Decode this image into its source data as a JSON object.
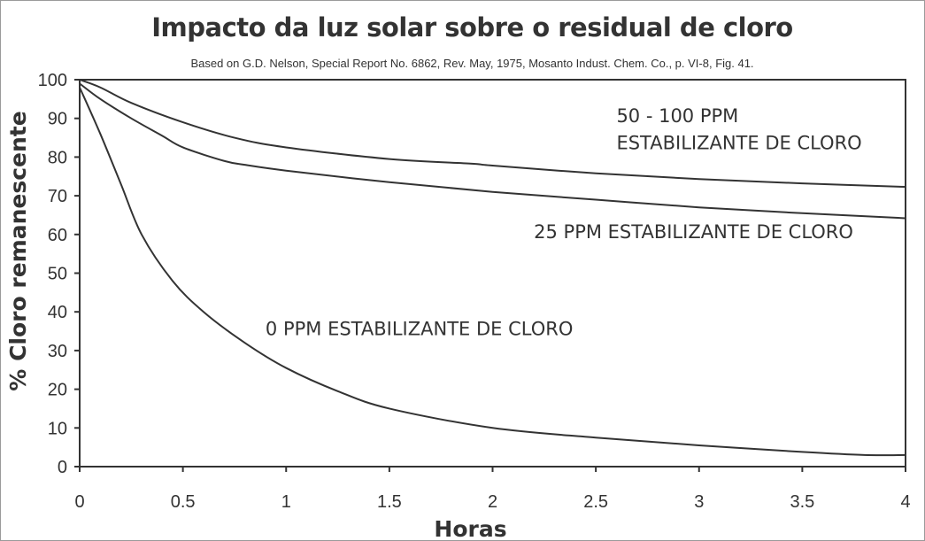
{
  "chart_data": {
    "type": "line",
    "title": "Impacto da luz solar sobre o residual de cloro",
    "subtitle": "Based on G.D. Nelson, Special Report No. 6862, Rev. May, 1975, Mosanto Indust. Chem. Co., p. VI-8, Fig. 41.",
    "xlabel": "Horas",
    "ylabel": "% Cloro remanescente",
    "xlim": [
      0,
      4
    ],
    "ylim": [
      0,
      100
    ],
    "x_ticks": [
      "0",
      "0.5",
      "1",
      "1.5",
      "2",
      "2.5",
      "3",
      "3.5",
      "4"
    ],
    "y_ticks": [
      "0",
      "10",
      "20",
      "30",
      "40",
      "50",
      "60",
      "70",
      "80",
      "90",
      "100"
    ],
    "grid": false,
    "series": [
      {
        "x": [
          0,
          0.1,
          0.25,
          0.5,
          0.75,
          1,
          1.5,
          1.9,
          2,
          2.5,
          3,
          3.5,
          4
        ],
        "y": [
          100,
          98,
          94,
          89,
          85,
          82.5,
          79.5,
          78.3,
          77.8,
          75.8,
          74.3,
          73.2,
          72.3
        ]
      },
      {
        "x": [
          0,
          0.1,
          0.25,
          0.4,
          0.5,
          0.7,
          0.8,
          1,
          1.5,
          2,
          2.5,
          3,
          3.5,
          4
        ],
        "y": [
          99,
          95,
          90,
          85.5,
          82.5,
          79,
          78,
          76.5,
          73.5,
          71,
          69,
          67,
          65.5,
          64.2
        ]
      },
      {
        "x": [
          0,
          0.1,
          0.2,
          0.3,
          0.45,
          0.6,
          0.8,
          1,
          1.25,
          1.5,
          2,
          2.5,
          3,
          3.5,
          3.8,
          4
        ],
        "y": [
          98,
          86,
          73,
          60,
          48,
          40,
          32,
          25.5,
          19.5,
          15,
          10,
          7.5,
          5.5,
          3.8,
          3,
          3
        ]
      }
    ],
    "annotations": [
      {
        "text": "50 - 100 PPM",
        "x": 2.6,
        "y": 89
      },
      {
        "text": "ESTABILIZANTE DE CLORO",
        "x": 2.6,
        "y": 82
      },
      {
        "text": "25 PPM   ESTABILIZANTE DE CLORO",
        "x": 2.2,
        "y": 59
      },
      {
        "text": "0 PPM   ESTABILIZANTE DE CLORO",
        "x": 0.9,
        "y": 34
      }
    ]
  }
}
